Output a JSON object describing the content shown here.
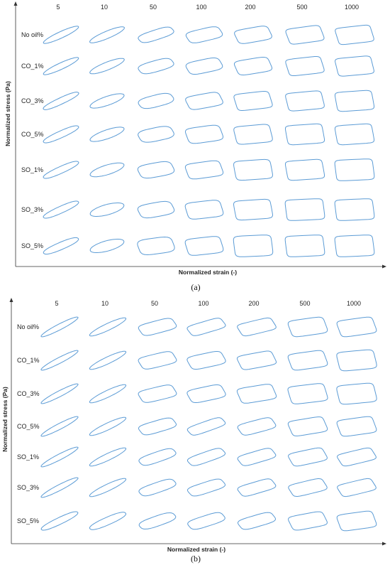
{
  "chart_data": [
    {
      "type": "lissajous-grid",
      "panel_label": "(a)",
      "columns": [
        "5",
        "10",
        "50",
        "100",
        "200",
        "500",
        "1000"
      ],
      "rows": [
        "No oil%",
        "CO_1%",
        "CO_3%",
        "CO_5%",
        "SO_1%",
        "SO_3%",
        "SO_5%"
      ],
      "xlabel": "Normalized strain (-)",
      "ylabel": "Normalized stress (Pa)",
      "loop_shape": [
        [
          [
            0.1,
            0.0
          ],
          [
            0.15,
            0.0
          ],
          [
            0.32,
            0.18
          ],
          [
            0.5,
            0.3
          ],
          [
            0.62,
            0.45
          ],
          [
            0.7,
            0.7
          ],
          [
            0.75,
            0.85
          ]
        ],
        [
          [
            0.1,
            0.0
          ],
          [
            0.18,
            0.0
          ],
          [
            0.4,
            0.18
          ],
          [
            0.55,
            0.3
          ],
          [
            0.65,
            0.5
          ],
          [
            0.75,
            0.75
          ],
          [
            0.8,
            0.85
          ]
        ],
        [
          [
            0.1,
            0.05
          ],
          [
            0.25,
            0.0
          ],
          [
            0.45,
            0.15
          ],
          [
            0.6,
            0.45
          ],
          [
            0.75,
            0.7
          ],
          [
            0.8,
            0.8
          ],
          [
            0.85,
            0.85
          ]
        ],
        [
          [
            0.12,
            0.05
          ],
          [
            0.25,
            0.0
          ],
          [
            0.55,
            0.2
          ],
          [
            0.7,
            0.45
          ],
          [
            0.8,
            0.7
          ],
          [
            0.85,
            0.85
          ],
          [
            0.85,
            0.85
          ]
        ],
        [
          [
            0.12,
            0.05
          ],
          [
            0.3,
            0.0
          ],
          [
            0.6,
            0.25
          ],
          [
            0.7,
            0.5
          ],
          [
            0.85,
            0.7
          ],
          [
            0.85,
            0.85
          ],
          [
            0.9,
            0.9
          ]
        ],
        [
          [
            0.12,
            0.05
          ],
          [
            0.35,
            0.0
          ],
          [
            0.6,
            0.25
          ],
          [
            0.75,
            0.5
          ],
          [
            0.85,
            0.75
          ],
          [
            0.9,
            0.9
          ],
          [
            0.9,
            0.9
          ]
        ],
        [
          [
            0.15,
            0.05
          ],
          [
            0.35,
            0.0
          ],
          [
            0.7,
            0.3
          ],
          [
            0.75,
            0.55
          ],
          [
            0.9,
            0.75
          ],
          [
            0.9,
            0.9
          ],
          [
            0.9,
            0.9
          ]
        ]
      ]
    },
    {
      "type": "lissajous-grid",
      "panel_label": "(b)",
      "columns": [
        "5",
        "10",
        "50",
        "100",
        "200",
        "500",
        "1000"
      ],
      "rows": [
        "No oil%",
        "CO_1%",
        "CO_3%",
        "CO_5%",
        "SO_1%",
        "SO_3%",
        "SO_5%"
      ],
      "xlabel": "Normalized strain (-)",
      "ylabel": "Normalized stress (Pa)",
      "loop_shape": [
        [
          [
            0.05,
            0.0
          ],
          [
            0.1,
            0.0
          ],
          [
            0.45,
            0.35
          ],
          [
            0.4,
            0.45
          ],
          [
            0.5,
            0.55
          ],
          [
            0.7,
            0.6
          ],
          [
            0.7,
            0.7
          ]
        ],
        [
          [
            0.05,
            0.0
          ],
          [
            0.1,
            0.0
          ],
          [
            0.5,
            0.4
          ],
          [
            0.55,
            0.45
          ],
          [
            0.6,
            0.6
          ],
          [
            0.7,
            0.65
          ],
          [
            0.8,
            0.7
          ]
        ],
        [
          [
            0.05,
            0.0
          ],
          [
            0.1,
            0.0
          ],
          [
            0.5,
            0.4
          ],
          [
            0.55,
            0.45
          ],
          [
            0.65,
            0.6
          ],
          [
            0.75,
            0.7
          ],
          [
            0.8,
            0.7
          ]
        ],
        [
          [
            0.05,
            0.0
          ],
          [
            0.1,
            0.0
          ],
          [
            0.4,
            0.3
          ],
          [
            0.3,
            0.35
          ],
          [
            0.45,
            0.4
          ],
          [
            0.65,
            0.65
          ],
          [
            0.7,
            0.7
          ]
        ],
        [
          [
            0.05,
            0.0
          ],
          [
            0.1,
            0.0
          ],
          [
            0.3,
            0.2
          ],
          [
            0.3,
            0.3
          ],
          [
            0.4,
            0.4
          ],
          [
            0.55,
            0.55
          ],
          [
            0.5,
            0.6
          ]
        ],
        [
          [
            0.05,
            0.0
          ],
          [
            0.1,
            0.0
          ],
          [
            0.3,
            0.2
          ],
          [
            0.35,
            0.3
          ],
          [
            0.4,
            0.4
          ],
          [
            0.5,
            0.5
          ],
          [
            0.5,
            0.55
          ]
        ],
        [
          [
            0.1,
            0.05
          ],
          [
            0.15,
            0.05
          ],
          [
            0.3,
            0.15
          ],
          [
            0.35,
            0.25
          ],
          [
            0.4,
            0.3
          ],
          [
            0.6,
            0.55
          ],
          [
            0.7,
            0.65
          ]
        ]
      ]
    }
  ]
}
